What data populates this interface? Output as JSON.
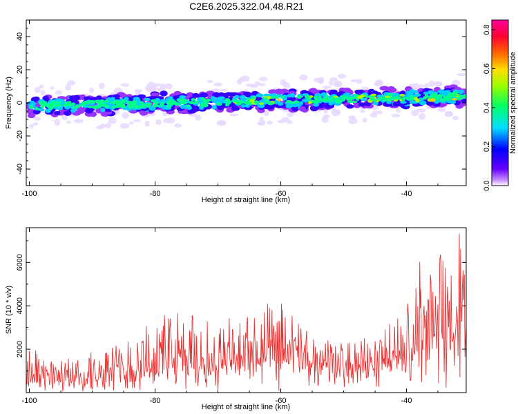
{
  "figure_title": "C2E6.2025.322.04.48.R21",
  "colors": {
    "snr_line": "#e83232",
    "axis": "#000000",
    "background": "#ffffff"
  },
  "chart_data": [
    {
      "type": "heatmap",
      "title": "C2E6.2025.322.04.48.R21",
      "xlabel": "Height of straight line (km)",
      "ylabel": "Frequency (Hz)",
      "xlim": [
        -100.5,
        -30.5
      ],
      "ylim": [
        -50,
        50
      ],
      "xticks": [
        -100,
        -80,
        -60,
        -40
      ],
      "xtick_labels": [
        "-100",
        "-80",
        "-60",
        "-40"
      ],
      "yticks": [
        -40,
        -20,
        0,
        20,
        40
      ],
      "ytick_labels": [
        "-40",
        "-20",
        "0",
        "20",
        "40"
      ],
      "grid": false,
      "colorbar": {
        "label": "Normalized spectral amplitude",
        "range": [
          0.0,
          0.85
        ],
        "ticks": [
          0.0,
          0.2,
          0.4,
          0.6,
          0.8
        ],
        "tick_labels": [
          "0.0",
          "0.2",
          "0.4",
          "0.6",
          "0.8"
        ],
        "colormap": "rainbow (violet-blue-cyan-green-yellow-red-magenta)"
      },
      "band": {
        "description": "Narrow band of energy centered near 0 Hz rising slightly with height",
        "center_start": {
          "x": -100,
          "y": -2
        },
        "center_end": {
          "x": -31,
          "y": 4
        },
        "halfwidth_hz": 6,
        "peak_value": 0.72
      }
    },
    {
      "type": "line",
      "title": "",
      "xlabel": "Height of straight line (km)",
      "ylabel": "SNR (10 * v/v)",
      "xlim": [
        -100.5,
        -30.5
      ],
      "ylim": [
        0,
        7600
      ],
      "xticks": [
        -100,
        -80,
        -60,
        -40
      ],
      "xtick_labels": [
        "-100",
        "-80",
        "-60",
        "-40"
      ],
      "yticks": [
        2000,
        4000,
        6000
      ],
      "ytick_labels": [
        "2000",
        "4000",
        "6000"
      ],
      "grid": false,
      "series": [
        {
          "name": "SNR",
          "description": "Noisy signal; baseline rising with height, peaks ~3000-4000 around -75 to -60 km and up to ~7500 near -31 km",
          "envelope_x": [
            -100,
            -95,
            -90,
            -85,
            -80,
            -75,
            -70,
            -65,
            -60,
            -55,
            -50,
            -45,
            -40,
            -38,
            -35,
            -32,
            -31
          ],
          "envelope_max": [
            2100,
            1500,
            1900,
            2500,
            3600,
            3800,
            3100,
            4000,
            4200,
            2600,
            2300,
            2700,
            3900,
            6100,
            6200,
            7500,
            7200
          ],
          "baseline": [
            400,
            450,
            550,
            700,
            850,
            950,
            1050,
            1100,
            1150,
            1050,
            1000,
            1100,
            1300,
            1800,
            2200,
            2600,
            2600
          ]
        }
      ]
    }
  ]
}
